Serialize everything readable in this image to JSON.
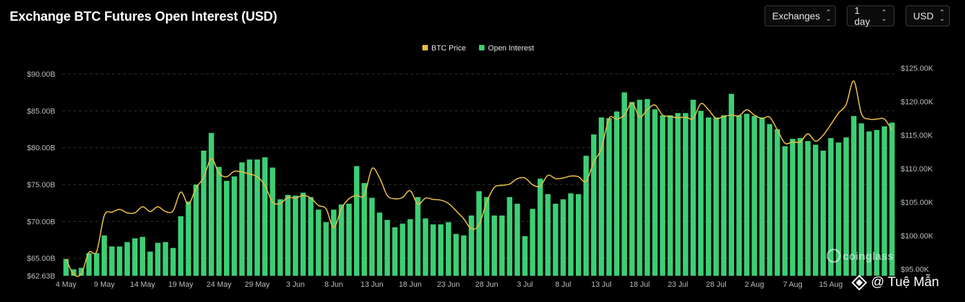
{
  "header": {
    "title": "Exchange BTC Futures Open Interest (USD)"
  },
  "controls": {
    "exchanges": {
      "label": "Exchanges"
    },
    "interval": {
      "label": "1 day"
    },
    "currency": {
      "label": "USD"
    }
  },
  "brand": {
    "logo_text": "coinglass"
  },
  "watermark": {
    "text": "@ Tuệ Mẫn"
  },
  "colors": {
    "background": "#000000",
    "oi_bar": "#3dce74",
    "btc_line": "#e7bc45",
    "grid": "#333333",
    "axis_text": "#bdbdbd"
  },
  "chart_data": {
    "type": "bar",
    "title": "Exchange BTC Futures Open Interest (USD)",
    "legend": {
      "placement": "top-center",
      "items": [
        "BTC Price",
        "Open Interest"
      ]
    },
    "x_tick_labels": [
      "4 May",
      "9 May",
      "14 May",
      "19 May",
      "24 May",
      "29 May",
      "3 Jun",
      "8 Jun",
      "13 Jun",
      "18 Jun",
      "23 Jun",
      "28 Jun",
      "3 Jul",
      "8 Jul",
      "13 Jul",
      "18 Jul",
      "23 Jul",
      "28 Jul",
      "2 Aug",
      "7 Aug",
      "15 Aug"
    ],
    "y_left": {
      "label": "",
      "ticks": [
        "$62.63B",
        "$65.00B",
        "$70.00B",
        "$75.00B",
        "$80.00B",
        "$85.00B",
        "$90.00B"
      ],
      "range": [
        62.63,
        91.5
      ],
      "unit": "B USD"
    },
    "y_right": {
      "label": "",
      "ticks": [
        "$95.00K",
        "$100.00K",
        "$105.00K",
        "$110.00K",
        "$115.00K",
        "$120.00K",
        "$125.00K"
      ],
      "range": [
        94.0,
        125.8
      ],
      "unit": "K USD"
    },
    "grid": true,
    "series": [
      {
        "name": "Open Interest",
        "type": "bar",
        "axis": "left",
        "values": [
          64.9,
          63.5,
          63.7,
          65.7,
          65.7,
          68.1,
          66.6,
          66.6,
          67.2,
          67.7,
          67.9,
          65.9,
          67.1,
          67.2,
          66.4,
          70.7,
          72.7,
          75.0,
          79.6,
          82.0,
          77.4,
          75.5,
          76.1,
          78.0,
          78.4,
          78.4,
          78.7,
          77.3,
          73.0,
          73.6,
          73.5,
          73.9,
          73.3,
          71.6,
          69.9,
          71.6,
          72.3,
          72.4,
          77.5,
          75.2,
          73.2,
          71.2,
          70.2,
          69.2,
          69.7,
          70.3,
          73.3,
          70.4,
          69.6,
          69.6,
          69.9,
          68.3,
          68.1,
          70.8,
          74.1,
          73.3,
          70.8,
          70.8,
          73.3,
          72.4,
          68.0,
          71.7,
          75.8,
          73.7,
          72.4,
          73.0,
          73.8,
          73.7,
          78.9,
          81.8,
          84.1,
          84.0,
          84.9,
          87.5,
          86.2,
          86.5,
          86.6,
          85.2,
          84.4,
          84.4,
          84.7,
          84.7,
          86.5,
          85.0,
          84.1,
          84.1,
          84.4,
          87.3,
          84.4,
          84.6,
          84.3,
          84.1,
          83.2,
          82.5,
          80.2,
          81.2,
          81.3,
          80.9,
          80.4,
          79.6,
          81.3,
          80.7,
          81.4,
          84.3,
          83.3,
          82.2,
          82.4,
          82.9,
          83.4
        ]
      },
      {
        "name": "BTC Price",
        "type": "line",
        "axis": "right",
        "values": [
          96.5,
          94.2,
          94.3,
          97.5,
          97.6,
          103.0,
          103.5,
          103.9,
          103.4,
          103.4,
          104.3,
          103.6,
          104.3,
          103.6,
          103.7,
          106.5,
          104.7,
          107.1,
          108.7,
          111.5,
          109.3,
          108.8,
          109.6,
          109.5,
          109.2,
          108.8,
          107.5,
          105.0,
          104.8,
          105.7,
          105.6,
          106.0,
          105.6,
          104.5,
          104.0,
          101.2,
          104.0,
          105.5,
          106.0,
          106.0,
          110.0,
          108.6,
          106.0,
          105.5,
          105.7,
          106.7,
          104.7,
          105.6,
          105.4,
          105.3,
          104.8,
          103.7,
          102.5,
          101.0,
          101.6,
          105.0,
          107.2,
          107.5,
          107.7,
          108.5,
          108.6,
          107.6,
          107.4,
          109.0,
          108.5,
          108.6,
          108.9,
          108.8,
          108.1,
          111.0,
          113.0,
          117.5,
          117.4,
          118.0,
          119.8,
          117.7,
          118.8,
          119.5,
          118.0,
          117.8,
          117.6,
          117.7,
          117.5,
          119.7,
          118.8,
          117.5,
          117.8,
          118.0,
          117.9,
          118.8,
          118.0,
          117.5,
          117.7,
          115.8,
          113.8,
          114.0,
          114.0,
          115.2,
          114.1,
          115.0,
          116.6,
          118.3,
          119.6,
          123.1,
          118.2,
          117.4,
          117.4,
          117.4,
          115.7
        ]
      }
    ]
  }
}
